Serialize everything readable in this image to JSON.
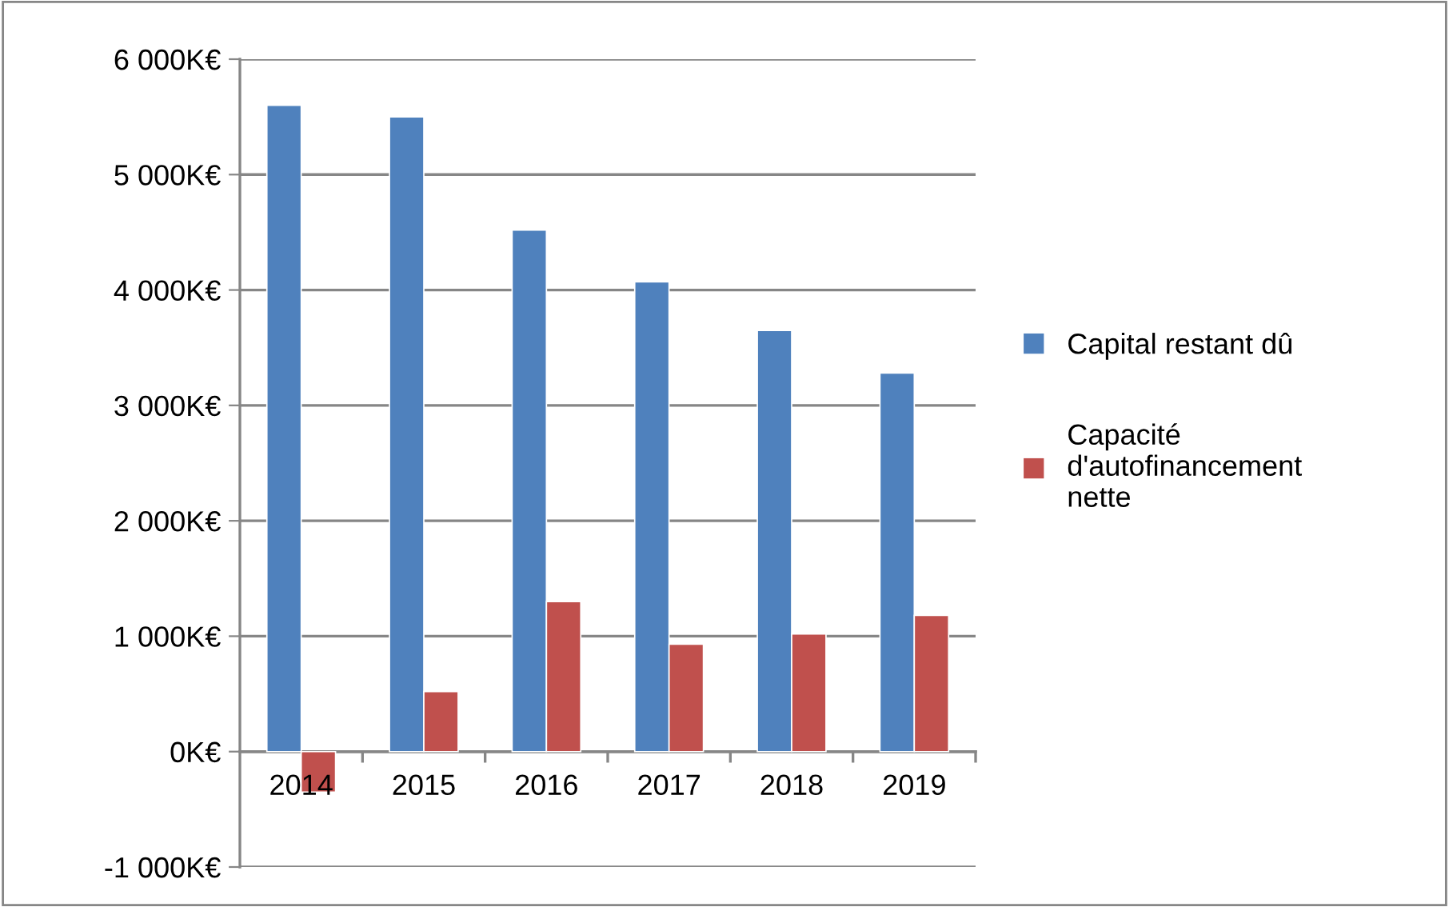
{
  "chart_data": {
    "type": "bar",
    "categories": [
      "2014",
      "2015",
      "2016",
      "2017",
      "2018",
      "2019"
    ],
    "series": [
      {
        "name": "Capital restant dû",
        "color": "#4f81bd",
        "values": [
          5600,
          5500,
          4520,
          4070,
          3650,
          3280
        ]
      },
      {
        "name": "Capacité d'autofinancement nette",
        "color": "#c0504d",
        "values": [
          -350,
          520,
          1300,
          930,
          1020,
          1180
        ]
      }
    ],
    "ylim": [
      -1000,
      6000
    ],
    "yticks": [
      {
        "value": -1000,
        "label": "-1 000K€"
      },
      {
        "value": 0,
        "label": "0K€"
      },
      {
        "value": 1000,
        "label": "1 000K€"
      },
      {
        "value": 2000,
        "label": "2 000K€"
      },
      {
        "value": 3000,
        "label": "3 000K€"
      },
      {
        "value": 4000,
        "label": "4 000K€"
      },
      {
        "value": 5000,
        "label": "5 000K€"
      },
      {
        "value": 6000,
        "label": "6 000K€"
      }
    ],
    "grid": "y",
    "legend": "right"
  }
}
